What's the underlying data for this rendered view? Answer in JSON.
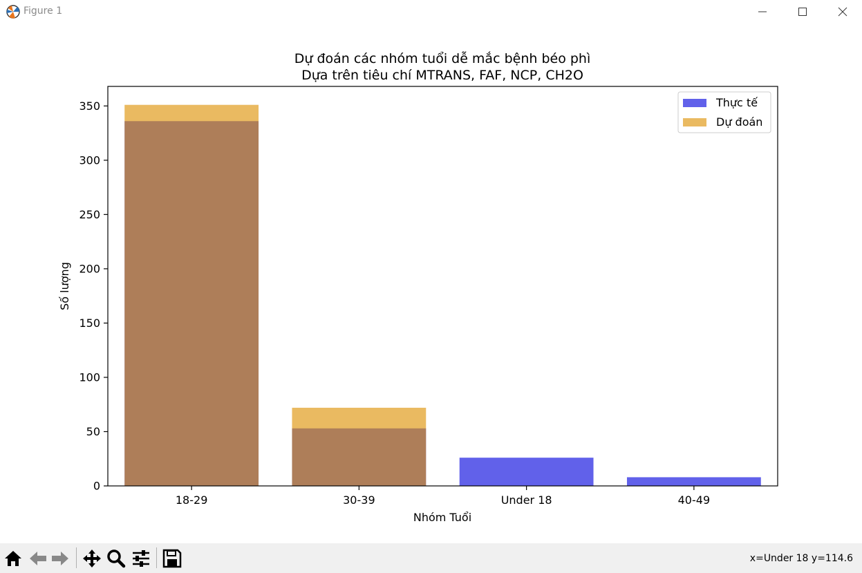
{
  "window": {
    "title": "Figure 1",
    "app_icon": "matplotlib-icon"
  },
  "toolbar": {
    "buttons": [
      "home-icon",
      "back-icon",
      "forward-icon",
      "pan-icon",
      "zoom-icon",
      "configure-icon",
      "save-icon"
    ],
    "coords": "x=Under 18 y=114.6"
  },
  "chart_data": {
    "type": "bar",
    "title": "Dự đoán các nhóm tuổi dễ mắc bệnh béo phì",
    "subtitle": "Dựa trên tiêu chí MTRANS, FAF, NCP, CH2O",
    "xlabel": "Nhóm Tuổi",
    "ylabel": "Số lượng",
    "categories": [
      "18-29",
      "30-39",
      "Under 18",
      "40-49"
    ],
    "series": [
      {
        "name": "Thực tế",
        "values": [
          336,
          53,
          26,
          8
        ],
        "color": "#0000dd"
      },
      {
        "name": "Dự đoán",
        "values": [
          351,
          72,
          0,
          0
        ],
        "color": "#dd8f00"
      }
    ],
    "yticks": [
      0,
      50,
      100,
      150,
      200,
      250,
      300,
      350
    ],
    "ylim": [
      0,
      368
    ],
    "legend": "top-right",
    "grid": false,
    "bar_opacity": 0.62
  }
}
